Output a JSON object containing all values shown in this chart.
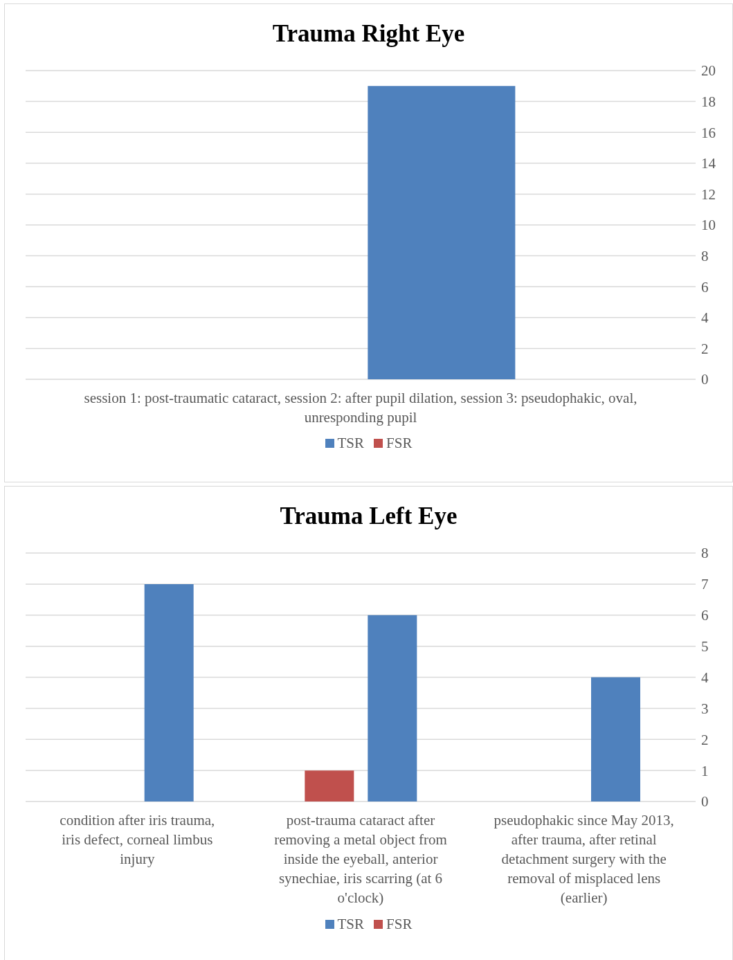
{
  "chart_data": [
    {
      "type": "bar",
      "title": "Trauma Right Eye",
      "categories": [
        "session 1: post-traumatic cataract, session 2: after pupil dilation, session 3: pseudophakic, oval, unresponding pupil"
      ],
      "series": [
        {
          "name": "TSR",
          "color": "#4f81bd",
          "values": [
            19
          ]
        },
        {
          "name": "FSR",
          "color": "#c0504d",
          "values": [
            0
          ]
        }
      ],
      "ylim": [
        0,
        20
      ],
      "yticks": [
        0,
        2,
        4,
        6,
        8,
        10,
        12,
        14,
        16,
        18,
        20
      ],
      "grid": "y",
      "legend": "bottom"
    },
    {
      "type": "bar",
      "title": "Trauma Left Eye",
      "categories": [
        "condition after iris trauma, iris defect, corneal limbus injury",
        "post-trauma cataract after removing a metal object from inside the eyeball, anterior synechiae, iris scarring (at 6 o'clock)",
        "pseudophakic since May 2013, after trauma, after retinal detachment surgery with the removal of misplaced lens (earlier)"
      ],
      "series": [
        {
          "name": "TSR",
          "color": "#4f81bd",
          "values": [
            7,
            6,
            4
          ]
        },
        {
          "name": "FSR",
          "color": "#c0504d",
          "values": [
            0,
            1,
            0
          ]
        }
      ],
      "ylim": [
        0,
        8
      ],
      "yticks": [
        0,
        1,
        2,
        3,
        4,
        5,
        6,
        7,
        8
      ],
      "grid": "y",
      "legend": "bottom"
    }
  ]
}
